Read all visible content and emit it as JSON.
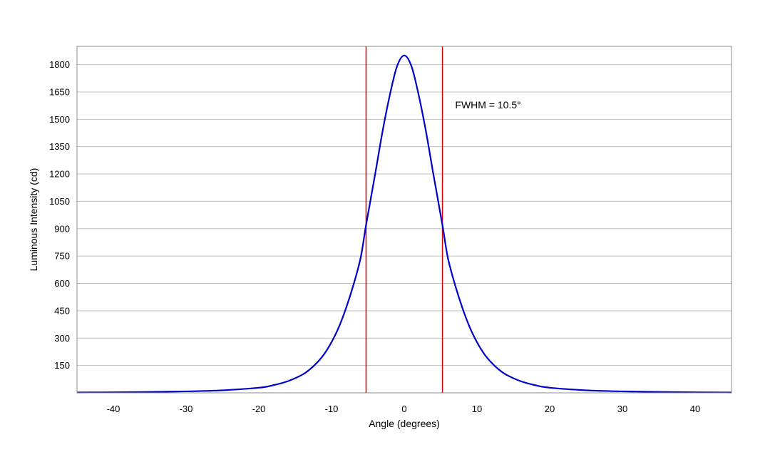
{
  "chart_data": {
    "type": "line",
    "title": "",
    "xlabel": "Angle (degrees)",
    "ylabel": "Luminous Intensity (cd)",
    "xlim": [
      -45,
      45
    ],
    "ylim": [
      0,
      1900
    ],
    "x_ticks": [
      -40,
      -30,
      -20,
      -10,
      0,
      10,
      20,
      30,
      40
    ],
    "y_ticks": [
      150,
      300,
      450,
      600,
      750,
      900,
      1050,
      1200,
      1350,
      1500,
      1650,
      1800
    ],
    "grid": "horizontal",
    "series": [
      {
        "color": "#0000cc",
        "x": [
          -45,
          -40,
          -35,
          -30,
          -25,
          -20,
          -18,
          -16,
          -14,
          -13,
          -12,
          -11,
          -10,
          -9,
          -8,
          -7,
          -6,
          -5.25,
          -4,
          -3,
          -2,
          -1,
          0,
          1,
          2,
          3,
          4,
          5.25,
          6,
          7,
          8,
          9,
          10,
          11,
          12,
          13,
          14,
          16,
          18,
          20,
          25,
          30,
          35,
          40,
          45
        ],
        "y": [
          2,
          3,
          5,
          8,
          14,
          28,
          42,
          64,
          100,
          128,
          165,
          213,
          278,
          360,
          465,
          590,
          740,
          920,
          1200,
          1430,
          1630,
          1790,
          1850,
          1790,
          1630,
          1430,
          1200,
          920,
          740,
          590,
          465,
          360,
          278,
          213,
          165,
          128,
          100,
          64,
          42,
          28,
          14,
          8,
          5,
          3,
          2
        ]
      }
    ],
    "vlines": {
      "color": "#dd0000",
      "x": [
        -5.25,
        5.25
      ]
    },
    "annotation": {
      "text": "FWHM = 10.5°",
      "x": 7,
      "y": 1560
    }
  }
}
